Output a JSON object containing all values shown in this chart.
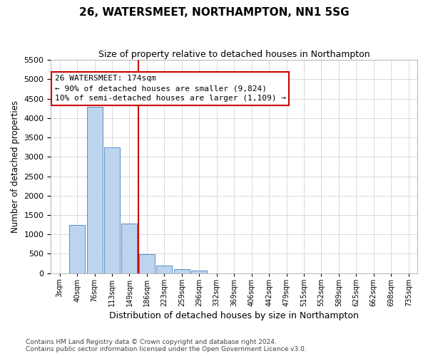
{
  "title": "26, WATERSMEET, NORTHAMPTON, NN1 5SG",
  "subtitle": "Size of property relative to detached houses in Northampton",
  "xlabel": "Distribution of detached houses by size in Northampton",
  "ylabel": "Number of detached properties",
  "bar_color": "#bdd4ee",
  "bar_edge_color": "#5b8ec4",
  "background_color": "#ffffff",
  "grid_color": "#cccccc",
  "categories": [
    "3sqm",
    "40sqm",
    "76sqm",
    "113sqm",
    "149sqm",
    "186sqm",
    "223sqm",
    "259sqm",
    "296sqm",
    "332sqm",
    "369sqm",
    "406sqm",
    "442sqm",
    "479sqm",
    "515sqm",
    "552sqm",
    "589sqm",
    "625sqm",
    "662sqm",
    "698sqm",
    "735sqm"
  ],
  "values": [
    0,
    1250,
    4300,
    3250,
    1280,
    480,
    200,
    100,
    70,
    0,
    0,
    0,
    0,
    0,
    0,
    0,
    0,
    0,
    0,
    0,
    0
  ],
  "ylim": [
    0,
    5500
  ],
  "yticks": [
    0,
    500,
    1000,
    1500,
    2000,
    2500,
    3000,
    3500,
    4000,
    4500,
    5000,
    5500
  ],
  "vline_x": 4.5,
  "vline_color": "#cc0000",
  "ann_line1": "26 WATERSMEET: 174sqm",
  "ann_line2": "← 90% of detached houses are smaller (9,824)",
  "ann_line3": "10% of semi-detached houses are larger (1,109) →",
  "annotation_box_facecolor": "#ffffff",
  "annotation_box_edgecolor": "#cc0000",
  "footer_line1": "Contains HM Land Registry data © Crown copyright and database right 2024.",
  "footer_line2": "Contains public sector information licensed under the Open Government Licence v3.0.",
  "title_fontsize": 11,
  "subtitle_fontsize": 9,
  "ylabel_fontsize": 8.5,
  "xlabel_fontsize": 9,
  "tick_fontsize": 8,
  "xtick_fontsize": 7,
  "ann_fontsize": 8,
  "footer_fontsize": 6.5
}
